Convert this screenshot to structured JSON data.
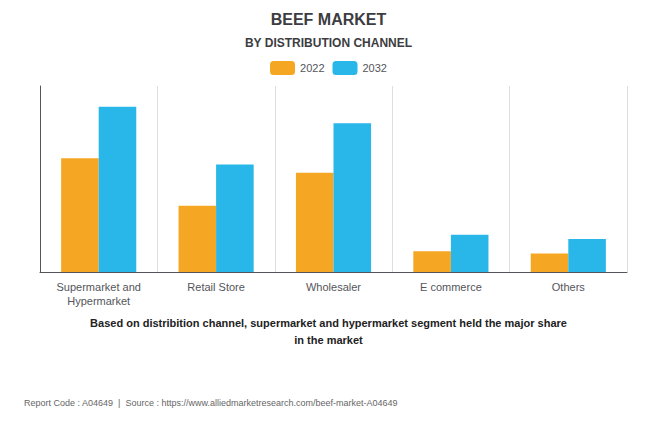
{
  "chart_data": {
    "type": "bar",
    "title": "BEEF MARKET",
    "subtitle": "BY DISTRIBUTION CHANNEL",
    "categories": [
      "Supermarket and\nHypermarket",
      "Retail Store",
      "Wholesaler",
      "E commerce",
      "Others"
    ],
    "series": [
      {
        "name": "2022",
        "color": "#f5a623",
        "values": [
          55,
          32,
          48,
          10,
          9
        ]
      },
      {
        "name": "2032",
        "color": "#29b6e8",
        "values": [
          80,
          52,
          72,
          18,
          16
        ]
      }
    ],
    "ylim": [
      0,
      90
    ],
    "grid": true,
    "legend": "top",
    "tick_labels": "x",
    "annotations": [
      "Based on distribition channel, supermarket and hypermarket segment held the major share\nin the market",
      "Report Code : A04649  |  Source : https://www.alliedmarketresearch.com/beef-market-A04649"
    ]
  }
}
